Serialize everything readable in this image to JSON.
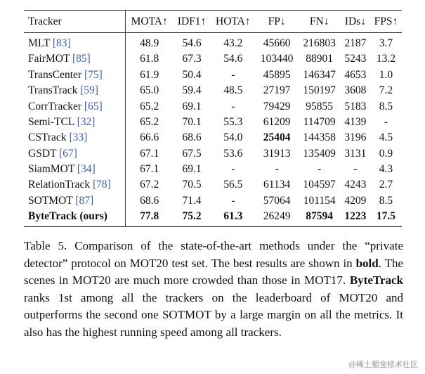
{
  "table": {
    "headers": [
      "Tracker",
      "MOTA↑",
      "IDF1↑",
      "HOTA↑",
      "FP↓",
      "FN↓",
      "IDs↓",
      "FPS↑"
    ],
    "rows": [
      {
        "name": "MLT",
        "cite": "[83]",
        "cells": [
          "48.9",
          "54.6",
          "43.2",
          "45660",
          "216803",
          "2187",
          "3.7"
        ],
        "bold": []
      },
      {
        "name": "FairMOT",
        "cite": "[85]",
        "cells": [
          "61.8",
          "67.3",
          "54.6",
          "103440",
          "88901",
          "5243",
          "13.2"
        ],
        "bold": []
      },
      {
        "name": "TransCenter",
        "cite": "[75]",
        "cells": [
          "61.9",
          "50.4",
          "-",
          "45895",
          "146347",
          "4653",
          "1.0"
        ],
        "bold": []
      },
      {
        "name": "TransTrack",
        "cite": "[59]",
        "cells": [
          "65.0",
          "59.4",
          "48.5",
          "27197",
          "150197",
          "3608",
          "7.2"
        ],
        "bold": []
      },
      {
        "name": "CorrTracker",
        "cite": "[65]",
        "cells": [
          "65.2",
          "69.1",
          "-",
          "79429",
          "95855",
          "5183",
          "8.5"
        ],
        "bold": []
      },
      {
        "name": "Semi-TCL",
        "cite": "[32]",
        "cells": [
          "65.2",
          "70.1",
          "55.3",
          "61209",
          "114709",
          "4139",
          "-"
        ],
        "bold": []
      },
      {
        "name": "CSTrack",
        "cite": "[33]",
        "cells": [
          "66.6",
          "68.6",
          "54.0",
          "25404",
          "144358",
          "3196",
          "4.5"
        ],
        "bold": [
          3
        ]
      },
      {
        "name": "GSDT",
        "cite": "[67]",
        "cells": [
          "67.1",
          "67.5",
          "53.6",
          "31913",
          "135409",
          "3131",
          "0.9"
        ],
        "bold": []
      },
      {
        "name": "SiamMOT",
        "cite": "[34]",
        "cells": [
          "67.1",
          "69.1",
          "-",
          "-",
          "-",
          "-",
          "4.3"
        ],
        "bold": []
      },
      {
        "name": "RelationTrack",
        "cite": "[78]",
        "cells": [
          "67.2",
          "70.5",
          "56.5",
          "61134",
          "104597",
          "4243",
          "2.7"
        ],
        "bold": []
      },
      {
        "name": "SOTMOT",
        "cite": "[87]",
        "cells": [
          "68.6",
          "71.4",
          "-",
          "57064",
          "101154",
          "4209",
          "8.5"
        ],
        "bold": []
      },
      {
        "name": "ByteTrack (ours)",
        "cite": "",
        "cells": [
          "77.8",
          "75.2",
          "61.3",
          "26249",
          "87594",
          "1223",
          "17.5"
        ],
        "bold": [
          0,
          1,
          2,
          4,
          5,
          6
        ],
        "name_bold": true
      }
    ]
  },
  "caption": {
    "segments": [
      {
        "text": "Table 5.  Comparison of the state-of-the-art methods under the “private detector” protocol on MOT20 test set.  The best results are shown in ",
        "bold": false
      },
      {
        "text": "bold",
        "bold": true
      },
      {
        "text": ". The scenes in MOT20 are much more crowded than those in MOT17. ",
        "bold": false
      },
      {
        "text": "ByteTrack",
        "bold": true
      },
      {
        "text": " ranks 1st among all the trackers on the leaderboard of MOT20 and outperforms the second one SOTMOT by a large margin on all the metrics.  It also has the highest running speed among all trackers.",
        "bold": false
      }
    ]
  },
  "watermark": "@稀土掘金技术社区",
  "colors": {
    "citation": "#3b5fb5",
    "text": "#111111",
    "watermark": "#9a9a9a"
  }
}
